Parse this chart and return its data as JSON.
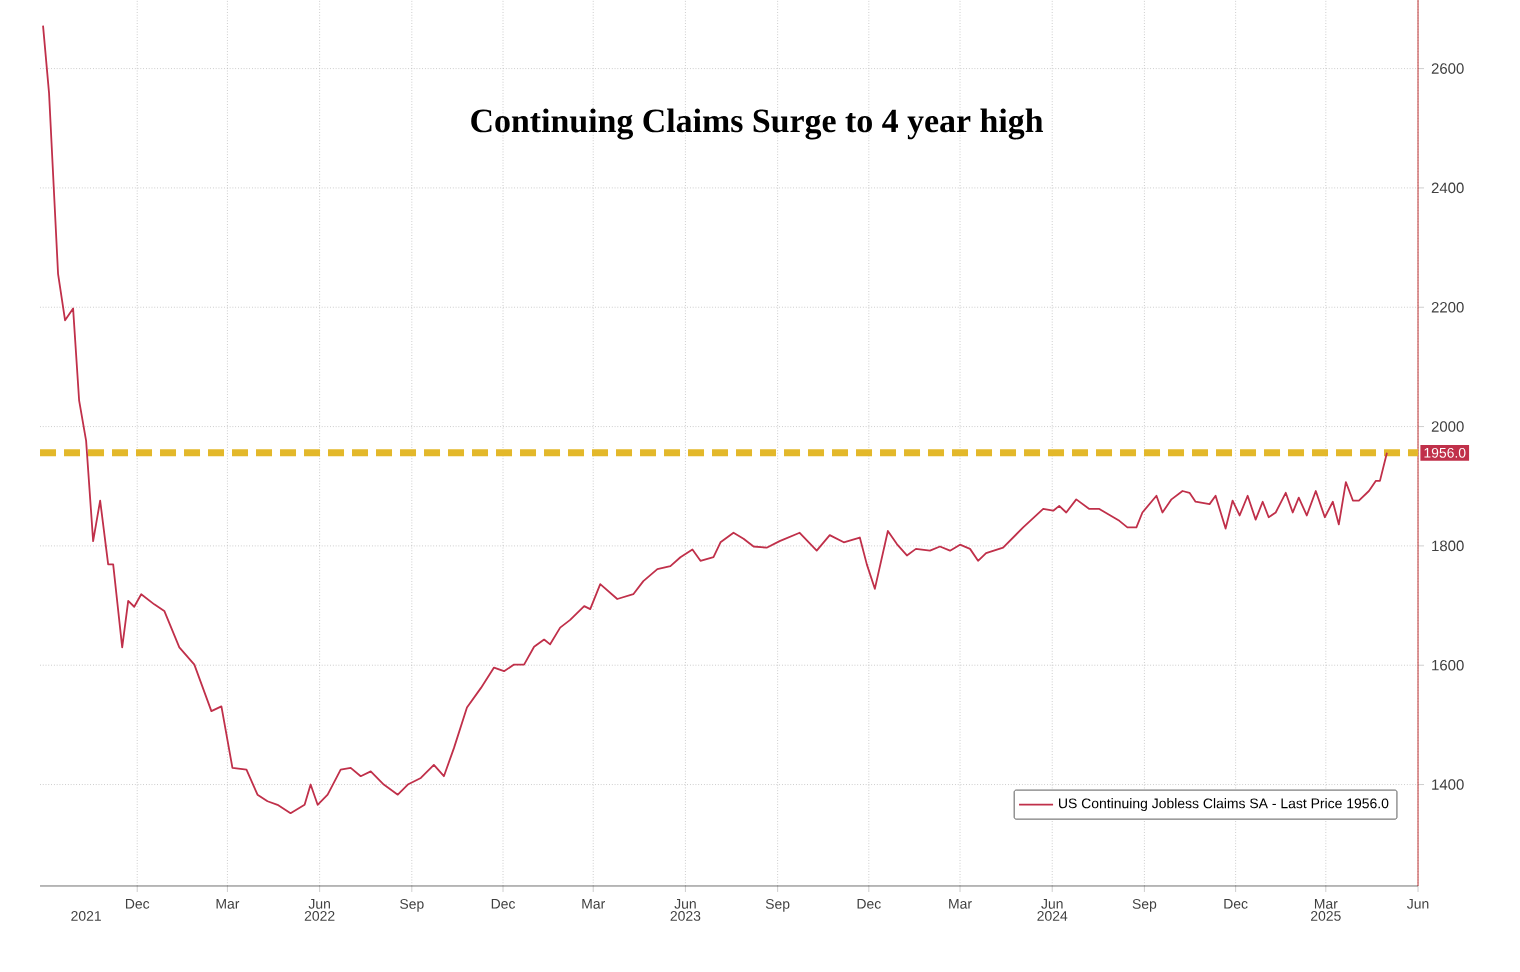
{
  "chart_data": {
    "type": "line",
    "title": "Continuing Claims Surge to 4 year high",
    "x": [
      "2021-08-29",
      "2021-09-04",
      "2021-09-13",
      "2021-09-20",
      "2021-09-28",
      "2021-10-04",
      "2021-10-11",
      "2021-10-18",
      "2021-10-25",
      "2021-11-02",
      "2021-11-07",
      "2021-11-16",
      "2021-11-22",
      "2021-11-28",
      "2021-12-05",
      "2021-12-18",
      "2021-12-28",
      "2022-01-12",
      "2022-01-27",
      "2022-02-13",
      "2022-02-23",
      "2022-03-06",
      "2022-03-20",
      "2022-03-31",
      "2022-04-10",
      "2022-04-20",
      "2022-05-03",
      "2022-05-17",
      "2022-05-23",
      "2022-05-30",
      "2022-06-09",
      "2022-06-22",
      "2022-07-02",
      "2022-07-12",
      "2022-07-22",
      "2022-08-04",
      "2022-08-18",
      "2022-08-28",
      "2022-09-10",
      "2022-09-23",
      "2022-10-03",
      "2022-10-13",
      "2022-10-26",
      "2022-11-09",
      "2022-11-22",
      "2022-12-02",
      "2022-12-12",
      "2022-12-22",
      "2023-01-01",
      "2023-01-11",
      "2023-01-17",
      "2023-01-27",
      "2023-02-06",
      "2023-02-20",
      "2023-02-26",
      "2023-03-08",
      "2023-03-25",
      "2023-04-10",
      "2023-04-20",
      "2023-05-04",
      "2023-05-17",
      "2023-05-27",
      "2023-06-08",
      "2023-06-16",
      "2023-06-29",
      "2023-07-06",
      "2023-07-19",
      "2023-07-29",
      "2023-08-08",
      "2023-08-21",
      "2023-09-03",
      "2023-09-23",
      "2023-10-10",
      "2023-10-23",
      "2023-11-06",
      "2023-11-22",
      "2023-11-29",
      "2023-12-07",
      "2023-12-20",
      "2023-12-29",
      "2024-01-08",
      "2024-01-17",
      "2024-01-31",
      "2024-02-10",
      "2024-02-20",
      "2024-03-01",
      "2024-03-11",
      "2024-03-19",
      "2024-03-27",
      "2024-04-13",
      "2024-05-03",
      "2024-05-23",
      "2024-06-02",
      "2024-06-08",
      "2024-06-15",
      "2024-06-25",
      "2024-07-08",
      "2024-07-18",
      "2024-08-07",
      "2024-08-15",
      "2024-08-24",
      "2024-08-30",
      "2024-09-13",
      "2024-09-19",
      "2024-09-28",
      "2024-10-09",
      "2024-10-16",
      "2024-10-22",
      "2024-11-05",
      "2024-11-11",
      "2024-11-21",
      "2024-11-28",
      "2024-12-05",
      "2024-12-13",
      "2024-12-21",
      "2024-12-28",
      "2025-01-03",
      "2025-01-10",
      "2025-01-20",
      "2025-01-27",
      "2025-02-02",
      "2025-02-10",
      "2025-02-19",
      "2025-02-28",
      "2025-03-08",
      "2025-03-14",
      "2025-03-21",
      "2025-03-28",
      "2025-04-03",
      "2025-04-13",
      "2025-04-20",
      "2025-04-24",
      "2025-05-01"
    ],
    "series": [
      {
        "name": "US Continuing Jobless Claims SA - Last Price 1956.0",
        "color": "#c0304a",
        "values": [
          2672,
          2559,
          2256,
          2178,
          2198,
          2044,
          1976,
          1808,
          1876,
          1769,
          1769,
          1630,
          1708,
          1698,
          1719,
          1702,
          1691,
          1630,
          1601,
          1523,
          1531,
          1428,
          1425,
          1383,
          1372,
          1366,
          1352,
          1366,
          1400,
          1366,
          1383,
          1425,
          1428,
          1414,
          1422,
          1400,
          1383,
          1400,
          1411,
          1433,
          1414,
          1461,
          1529,
          1562,
          1596,
          1590,
          1601,
          1601,
          1631,
          1643,
          1635,
          1663,
          1676,
          1699,
          1694,
          1736,
          1711,
          1719,
          1741,
          1761,
          1766,
          1781,
          1794,
          1775,
          1781,
          1806,
          1822,
          1812,
          1799,
          1797,
          1808,
          1822,
          1792,
          1818,
          1806,
          1814,
          1769,
          1728,
          1825,
          1803,
          1784,
          1795,
          1792,
          1799,
          1792,
          1802,
          1795,
          1775,
          1788,
          1797,
          1831,
          1862,
          1859,
          1867,
          1856,
          1878,
          1862,
          1862,
          1842,
          1831,
          1831,
          1856,
          1884,
          1856,
          1878,
          1892,
          1889,
          1874,
          1870,
          1884,
          1829,
          1876,
          1851,
          1884,
          1844,
          1874,
          1848,
          1856,
          1889,
          1856,
          1881,
          1851,
          1892,
          1848,
          1874,
          1836,
          1907,
          1876,
          1876,
          1892,
          1909,
          1909,
          1956
        ]
      }
    ],
    "xlim": [
      "2021-08-26",
      "2025-06-01"
    ],
    "xticks": [
      {
        "value": "2021-12-01",
        "label": "Dec"
      },
      {
        "value": "2022-03-01",
        "label": "Mar"
      },
      {
        "value": "2022-06-01",
        "label": "Jun"
      },
      {
        "value": "2022-09-01",
        "label": "Sep"
      },
      {
        "value": "2022-12-01",
        "label": "Dec"
      },
      {
        "value": "2023-03-01",
        "label": "Mar"
      },
      {
        "value": "2023-06-01",
        "label": "Jun"
      },
      {
        "value": "2023-09-01",
        "label": "Sep"
      },
      {
        "value": "2023-12-01",
        "label": "Dec"
      },
      {
        "value": "2024-03-01",
        "label": "Mar"
      },
      {
        "value": "2024-06-01",
        "label": "Jun"
      },
      {
        "value": "2024-09-01",
        "label": "Sep"
      },
      {
        "value": "2024-12-01",
        "label": "Dec"
      },
      {
        "value": "2025-03-01",
        "label": "Mar"
      },
      {
        "value": "2025-06-01",
        "label": "Jun"
      }
    ],
    "x2lim": [
      "2021-08-26",
      "2025-06-01"
    ],
    "x2ticks": [
      {
        "value": "2021-10-11",
        "label": "2021"
      },
      {
        "value": "2022-06-01",
        "label": "2022"
      },
      {
        "value": "2023-06-01",
        "label": "2023"
      },
      {
        "value": "2024-06-01",
        "label": "2024"
      },
      {
        "value": "2025-03-01",
        "label": "2025"
      }
    ],
    "ylim": [
      1230,
      2715
    ],
    "yticks": [
      1400,
      1600,
      1800,
      2000,
      2200,
      2400,
      2600
    ],
    "ref_lines": [
      {
        "axis": "y",
        "value": 1956,
        "color": "#e3b82a",
        "line_style": "dashed"
      }
    ],
    "annotations": [
      {
        "text": "1956.0",
        "x": "2025-05-01",
        "y": 1956
      }
    ],
    "grid": true,
    "legend": "bottom right"
  }
}
